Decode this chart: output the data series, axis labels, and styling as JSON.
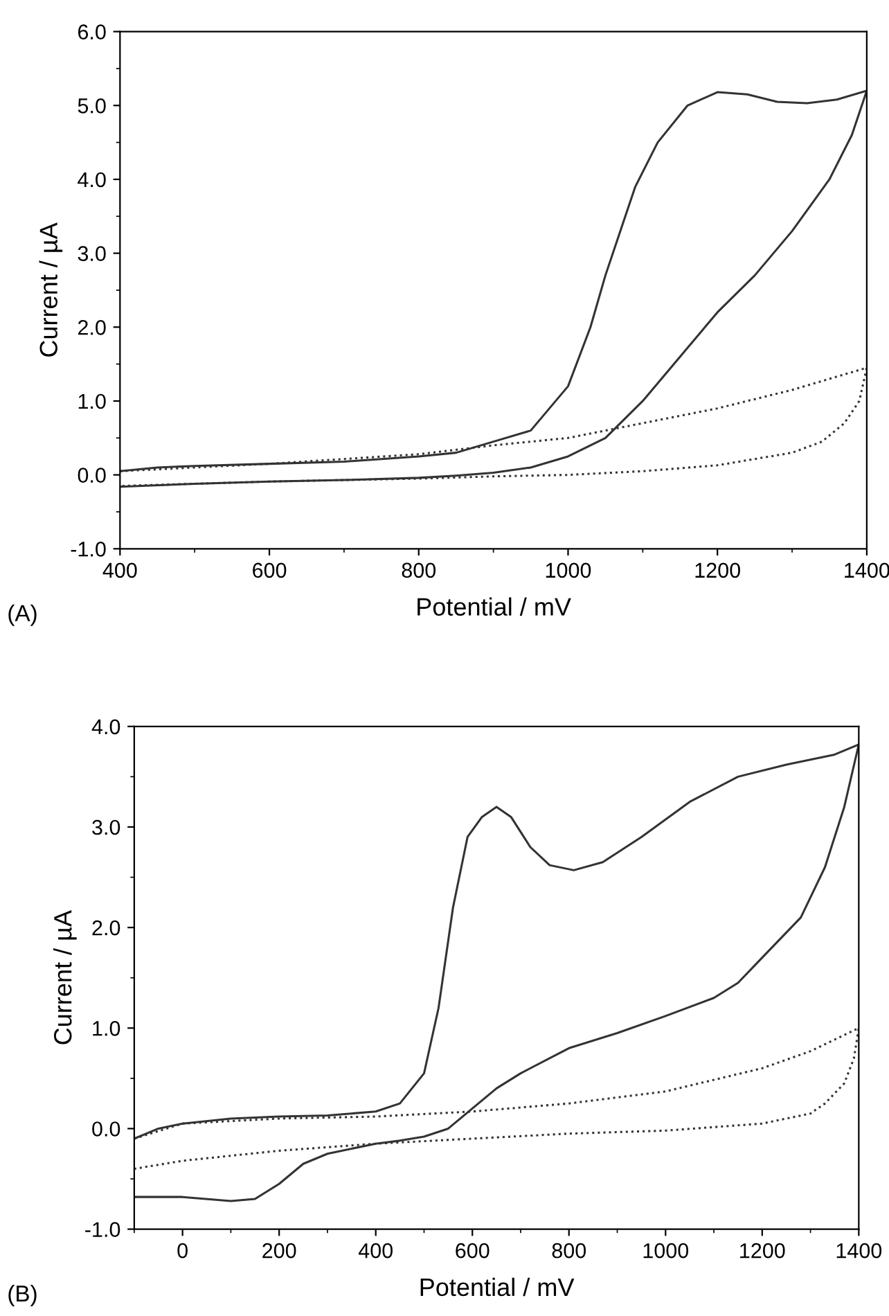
{
  "chart_data": [
    {
      "type": "line",
      "xlabel": "Potential / mV",
      "ylabel": "Current / µA",
      "annotations": [
        "(A)"
      ],
      "xlim": [
        400,
        1400
      ],
      "ylim": [
        -1,
        6
      ],
      "xticks": [
        400,
        600,
        800,
        1000,
        1200,
        1400
      ],
      "yticks": [
        {
          "value": -1,
          "label": "-1.0"
        },
        {
          "value": 0,
          "label": "0.0"
        },
        {
          "value": 1,
          "label": "1.0"
        },
        {
          "value": 2,
          "label": "2.0"
        },
        {
          "value": 3,
          "label": "3.0"
        },
        {
          "value": 4,
          "label": "4.0"
        },
        {
          "value": 5,
          "label": "5.0"
        },
        {
          "value": 6,
          "label": "6.0"
        }
      ],
      "grid": false,
      "legend": false,
      "marker": "none",
      "series": [
        {
          "color": "#333333",
          "line_style": "solid",
          "x": [
            400,
            450,
            500,
            600,
            700,
            800,
            850,
            900,
            950,
            1000,
            1030,
            1050,
            1070,
            1090,
            1120,
            1160,
            1200,
            1240,
            1280,
            1320,
            1360,
            1400,
            1380,
            1350,
            1300,
            1250,
            1200,
            1150,
            1100,
            1050,
            1000,
            950,
            900,
            850,
            800,
            700,
            600,
            500,
            400
          ],
          "values": [
            0.05,
            0.1,
            0.12,
            0.15,
            0.18,
            0.25,
            0.3,
            0.45,
            0.6,
            1.2,
            2.0,
            2.7,
            3.3,
            3.9,
            4.5,
            5.0,
            5.18,
            5.15,
            5.05,
            5.03,
            5.08,
            5.2,
            4.6,
            4.0,
            3.3,
            2.7,
            2.2,
            1.6,
            1.0,
            0.5,
            0.25,
            0.1,
            0.03,
            -0.01,
            -0.04,
            -0.07,
            -0.09,
            -0.12,
            -0.16
          ]
        },
        {
          "color": "#333333",
          "line_style": "dotted",
          "x": [
            400,
            600,
            800,
            900,
            1000,
            1100,
            1200,
            1300,
            1400,
            1390,
            1370,
            1340,
            1300,
            1200,
            1100,
            1000,
            900,
            800,
            600,
            400
          ],
          "values": [
            0.05,
            0.15,
            0.28,
            0.4,
            0.5,
            0.7,
            0.9,
            1.15,
            1.45,
            1.0,
            0.7,
            0.45,
            0.3,
            0.13,
            0.05,
            0.0,
            -0.02,
            -0.05,
            -0.09,
            -0.15
          ]
        }
      ]
    },
    {
      "type": "line",
      "xlabel": "Potential / mV",
      "ylabel": "Current / µA",
      "annotations": [
        "(B)"
      ],
      "xlim": [
        -100,
        1400
      ],
      "ylim": [
        -1,
        4
      ],
      "xticks": [
        0,
        200,
        400,
        600,
        800,
        1000,
        1200,
        1400
      ],
      "yticks": [
        {
          "value": -1,
          "label": "-1.0"
        },
        {
          "value": 0,
          "label": "0.0"
        },
        {
          "value": 1,
          "label": "1.0"
        },
        {
          "value": 2,
          "label": "2.0"
        },
        {
          "value": 3,
          "label": "3.0"
        },
        {
          "value": 4,
          "label": "4.0"
        }
      ],
      "grid": false,
      "legend": false,
      "marker": "none",
      "series": [
        {
          "color": "#333333",
          "line_style": "solid",
          "x": [
            -100,
            -50,
            0,
            100,
            200,
            300,
            400,
            450,
            500,
            530,
            560,
            590,
            620,
            650,
            680,
            720,
            760,
            810,
            870,
            950,
            1050,
            1150,
            1250,
            1350,
            1400,
            1370,
            1330,
            1280,
            1200,
            1150,
            1100,
            1000,
            900,
            800,
            700,
            650,
            600,
            550,
            500,
            450,
            400,
            300,
            250,
            200,
            150,
            100,
            0,
            -100
          ],
          "values": [
            -0.1,
            0.0,
            0.05,
            0.1,
            0.12,
            0.13,
            0.17,
            0.25,
            0.55,
            1.2,
            2.2,
            2.9,
            3.1,
            3.2,
            3.1,
            2.8,
            2.62,
            2.57,
            2.65,
            2.9,
            3.25,
            3.5,
            3.62,
            3.72,
            3.82,
            3.2,
            2.6,
            2.1,
            1.7,
            1.45,
            1.3,
            1.12,
            0.95,
            0.8,
            0.55,
            0.4,
            0.2,
            0.0,
            -0.08,
            -0.12,
            -0.15,
            -0.25,
            -0.35,
            -0.55,
            -0.7,
            -0.72,
            -0.68,
            -0.68
          ]
        },
        {
          "color": "#333333",
          "line_style": "dotted",
          "x": [
            -100,
            0,
            200,
            400,
            600,
            800,
            1000,
            1200,
            1300,
            1400,
            1390,
            1370,
            1330,
            1300,
            1200,
            1000,
            800,
            600,
            400,
            200,
            0,
            -100
          ],
          "values": [
            -0.1,
            0.05,
            0.1,
            0.12,
            0.17,
            0.25,
            0.37,
            0.6,
            0.77,
            1.0,
            0.7,
            0.45,
            0.25,
            0.15,
            0.05,
            -0.02,
            -0.05,
            -0.1,
            -0.15,
            -0.22,
            -0.32,
            -0.4
          ]
        }
      ]
    }
  ]
}
